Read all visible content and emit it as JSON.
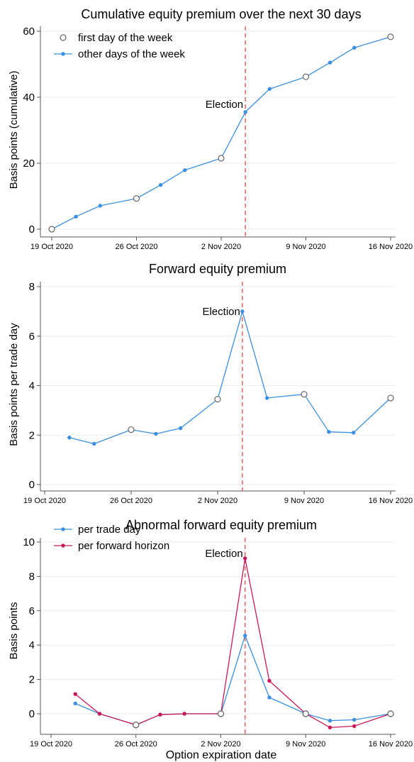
{
  "colors": {
    "blue": "#3a8fe0",
    "crimson": "#c8185a",
    "election_line": "#ef6a6a",
    "grid": "#ececec",
    "axis": "#555555"
  },
  "chart_data": [
    {
      "type": "line",
      "title": "Cumulative equity premium over the next 30 days",
      "xlabel": "",
      "ylabel": "Basis points (cumulative)",
      "xlim": [
        "2020-10-19",
        "2020-11-16"
      ],
      "ylim": [
        0,
        60
      ],
      "yticks": [
        "0",
        "20",
        "40",
        "60"
      ],
      "xticks": [
        {
          "date": "2020-10-19",
          "label": "19 Oct 2020"
        },
        {
          "date": "2020-10-26",
          "label": "26 Oct 2020"
        },
        {
          "date": "2020-11-02",
          "label": "2 Nov 2020"
        },
        {
          "date": "2020-11-09",
          "label": "9 Nov 2020"
        },
        {
          "date": "2020-11-16",
          "label": "16 Nov 2020"
        }
      ],
      "grid": true,
      "legend": {
        "position": "top-left",
        "entries": [
          {
            "label": "first day of the week",
            "marker": "hollow"
          },
          {
            "label": "other days of the week",
            "marker": "filled"
          }
        ]
      },
      "annotation": {
        "text": "Election",
        "date": "2020-11-04"
      },
      "series": [
        {
          "color": "#3a8fe0",
          "points": [
            {
              "x": "2020-10-19",
              "y": 0.0,
              "first_day": true
            },
            {
              "x": "2020-10-21",
              "y": 3.8,
              "first_day": false
            },
            {
              "x": "2020-10-23",
              "y": 7.1,
              "first_day": false
            },
            {
              "x": "2020-10-26",
              "y": 9.3,
              "first_day": true
            },
            {
              "x": "2020-10-28",
              "y": 13.4,
              "first_day": false
            },
            {
              "x": "2020-10-30",
              "y": 17.9,
              "first_day": false
            },
            {
              "x": "2020-11-02",
              "y": 21.5,
              "first_day": true
            },
            {
              "x": "2020-11-04",
              "y": 35.5,
              "first_day": false
            },
            {
              "x": "2020-11-06",
              "y": 42.5,
              "first_day": false
            },
            {
              "x": "2020-11-09",
              "y": 46.2,
              "first_day": true
            },
            {
              "x": "2020-11-11",
              "y": 50.5,
              "first_day": false
            },
            {
              "x": "2020-11-13",
              "y": 55.0,
              "first_day": false
            },
            {
              "x": "2020-11-16",
              "y": 58.3,
              "first_day": true
            }
          ]
        }
      ]
    },
    {
      "type": "line",
      "title": "Forward equity premium",
      "xlabel": "",
      "ylabel": "Basis points per trade day",
      "xlim": [
        "2020-10-19",
        "2020-11-16"
      ],
      "ylim": [
        0,
        8
      ],
      "yticks": [
        "0",
        "2",
        "4",
        "6",
        "8"
      ],
      "xticks": [
        {
          "date": "2020-10-19",
          "label": "19 Oct 2020"
        },
        {
          "date": "2020-10-26",
          "label": "26 Oct 2020"
        },
        {
          "date": "2020-11-02",
          "label": "2 Nov 2020"
        },
        {
          "date": "2020-11-09",
          "label": "9 Nov 2020"
        },
        {
          "date": "2020-11-16",
          "label": "16 Nov 2020"
        }
      ],
      "grid": true,
      "annotation": {
        "text": "Election",
        "date": "2020-11-04"
      },
      "series": [
        {
          "color": "#3a8fe0",
          "points": [
            {
              "x": "2020-10-21",
              "y": 1.9,
              "first_day": false
            },
            {
              "x": "2020-10-23",
              "y": 1.65,
              "first_day": false
            },
            {
              "x": "2020-10-26",
              "y": 2.22,
              "first_day": true
            },
            {
              "x": "2020-10-28",
              "y": 2.05,
              "first_day": false
            },
            {
              "x": "2020-10-30",
              "y": 2.28,
              "first_day": false
            },
            {
              "x": "2020-11-02",
              "y": 3.45,
              "first_day": true
            },
            {
              "x": "2020-11-04",
              "y": 7.0,
              "first_day": false
            },
            {
              "x": "2020-11-06",
              "y": 3.5,
              "first_day": false
            },
            {
              "x": "2020-11-09",
              "y": 3.65,
              "first_day": true
            },
            {
              "x": "2020-11-11",
              "y": 2.13,
              "first_day": false
            },
            {
              "x": "2020-11-13",
              "y": 2.1,
              "first_day": false
            },
            {
              "x": "2020-11-16",
              "y": 3.5,
              "first_day": true
            }
          ]
        }
      ]
    },
    {
      "type": "line",
      "title": "Abnormal forward equity premium",
      "xlabel": "Option expiration date",
      "ylabel": "Basis points",
      "xlim": [
        "2020-10-19",
        "2020-11-16"
      ],
      "ylim": [
        -1,
        10
      ],
      "yticks": [
        "0",
        "2",
        "4",
        "6",
        "8",
        "10"
      ],
      "xticks": [
        {
          "date": "2020-10-19",
          "label": "19 Oct 2020"
        },
        {
          "date": "2020-10-26",
          "label": "26 Oct 2020"
        },
        {
          "date": "2020-11-02",
          "label": "2 Nov 2020"
        },
        {
          "date": "2020-11-09",
          "label": "9 Nov 2020"
        },
        {
          "date": "2020-11-16",
          "label": "16 Nov 2020"
        }
      ],
      "grid": true,
      "legend": {
        "position": "top-left",
        "entries": [
          {
            "label": "per trade day",
            "color": "#3a8fe0"
          },
          {
            "label": "per forward horizon",
            "color": "#c8185a"
          }
        ]
      },
      "annotation": {
        "text": "Election",
        "date": "2020-11-04"
      },
      "series": [
        {
          "name": "per trade day",
          "color": "#3a8fe0",
          "points": [
            {
              "x": "2020-10-21",
              "y": 0.6,
              "first_day": false
            },
            {
              "x": "2020-10-23",
              "y": 0.0,
              "first_day": false
            },
            {
              "x": "2020-10-26",
              "y": -0.65,
              "first_day": true
            },
            {
              "x": "2020-10-28",
              "y": -0.05,
              "first_day": false
            },
            {
              "x": "2020-10-30",
              "y": 0.0,
              "first_day": false
            },
            {
              "x": "2020-11-02",
              "y": 0.0,
              "first_day": true
            },
            {
              "x": "2020-11-04",
              "y": 4.55,
              "first_day": false
            },
            {
              "x": "2020-11-06",
              "y": 0.95,
              "first_day": false
            },
            {
              "x": "2020-11-09",
              "y": 0.0,
              "first_day": true
            },
            {
              "x": "2020-11-11",
              "y": -0.4,
              "first_day": false
            },
            {
              "x": "2020-11-13",
              "y": -0.35,
              "first_day": false
            },
            {
              "x": "2020-11-16",
              "y": 0.0,
              "first_day": true
            }
          ]
        },
        {
          "name": "per forward horizon",
          "color": "#c8185a",
          "points": [
            {
              "x": "2020-10-21",
              "y": 1.15,
              "first_day": false
            },
            {
              "x": "2020-10-23",
              "y": 0.0,
              "first_day": false
            },
            {
              "x": "2020-10-26",
              "y": -0.65,
              "first_day": true
            },
            {
              "x": "2020-10-28",
              "y": -0.05,
              "first_day": false
            },
            {
              "x": "2020-10-30",
              "y": 0.0,
              "first_day": false
            },
            {
              "x": "2020-11-02",
              "y": 0.0,
              "first_day": true
            },
            {
              "x": "2020-11-04",
              "y": 9.05,
              "first_day": false
            },
            {
              "x": "2020-11-06",
              "y": 1.92,
              "first_day": false
            },
            {
              "x": "2020-11-09",
              "y": 0.0,
              "first_day": true
            },
            {
              "x": "2020-11-11",
              "y": -0.8,
              "first_day": false
            },
            {
              "x": "2020-11-13",
              "y": -0.72,
              "first_day": false
            },
            {
              "x": "2020-11-16",
              "y": 0.0,
              "first_day": true
            }
          ]
        }
      ]
    }
  ]
}
